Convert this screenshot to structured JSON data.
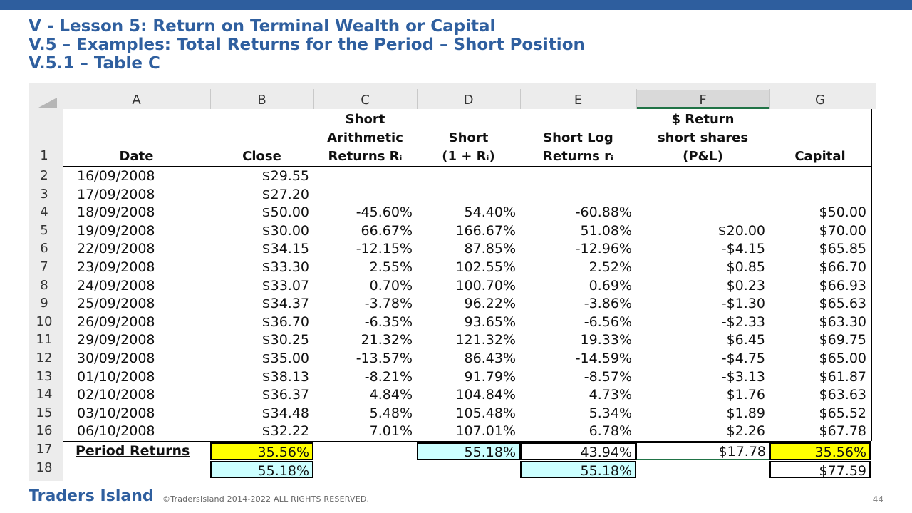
{
  "title": {
    "line1": "V -  Lesson 5: Return on Terminal Wealth or Capital",
    "line2": "V.5 – Examples: Total Returns for the Period – Short Position",
    "line3": "V.5.1 – Table C"
  },
  "columns": [
    "A",
    "B",
    "C",
    "D",
    "E",
    "F",
    "G"
  ],
  "header": {
    "date": "Date",
    "close": "Close",
    "short_arith": [
      "Short",
      "Arithmetic",
      "Returns Rᵢ"
    ],
    "short_one_plus": [
      "Short",
      "(1 + Rᵢ)"
    ],
    "short_log": [
      "Short Log",
      "Returns rᵢ"
    ],
    "dollar_return": [
      "$ Return",
      "short shares",
      "(P&L)"
    ],
    "capital": "Capital"
  },
  "row_numbers": [
    "1",
    "2",
    "3",
    "4",
    "5",
    "6",
    "7",
    "8",
    "9",
    "10",
    "11",
    "12",
    "13",
    "14",
    "15",
    "16",
    "17",
    "18"
  ],
  "rows": [
    {
      "date": "16/09/2008",
      "close": "$29.55",
      "arith": "",
      "one_plus": "",
      "log": "",
      "pnl": "",
      "capital": ""
    },
    {
      "date": "17/09/2008",
      "close": "$27.20",
      "arith": "",
      "one_plus": "",
      "log": "",
      "pnl": "",
      "capital": ""
    },
    {
      "date": "18/09/2008",
      "close": "$50.00",
      "arith": "-45.60%",
      "one_plus": "54.40%",
      "log": "-60.88%",
      "pnl": "",
      "capital": "$50.00"
    },
    {
      "date": "19/09/2008",
      "close": "$30.00",
      "arith": "66.67%",
      "one_plus": "166.67%",
      "log": "51.08%",
      "pnl": "$20.00",
      "capital": "$70.00"
    },
    {
      "date": "22/09/2008",
      "close": "$34.15",
      "arith": "-12.15%",
      "one_plus": "87.85%",
      "log": "-12.96%",
      "pnl": "-$4.15",
      "capital": "$65.85"
    },
    {
      "date": "23/09/2008",
      "close": "$33.30",
      "arith": "2.55%",
      "one_plus": "102.55%",
      "log": "2.52%",
      "pnl": "$0.85",
      "capital": "$66.70"
    },
    {
      "date": "24/09/2008",
      "close": "$33.07",
      "arith": "0.70%",
      "one_plus": "100.70%",
      "log": "0.69%",
      "pnl": "$0.23",
      "capital": "$66.93"
    },
    {
      "date": "25/09/2008",
      "close": "$34.37",
      "arith": "-3.78%",
      "one_plus": "96.22%",
      "log": "-3.86%",
      "pnl": "-$1.30",
      "capital": "$65.63"
    },
    {
      "date": "26/09/2008",
      "close": "$36.70",
      "arith": "-6.35%",
      "one_plus": "93.65%",
      "log": "-6.56%",
      "pnl": "-$2.33",
      "capital": "$63.30"
    },
    {
      "date": "29/09/2008",
      "close": "$30.25",
      "arith": "21.32%",
      "one_plus": "121.32%",
      "log": "19.33%",
      "pnl": "$6.45",
      "capital": "$69.75"
    },
    {
      "date": "30/09/2008",
      "close": "$35.00",
      "arith": "-13.57%",
      "one_plus": "86.43%",
      "log": "-14.59%",
      "pnl": "-$4.75",
      "capital": "$65.00"
    },
    {
      "date": "01/10/2008",
      "close": "$38.13",
      "arith": "-8.21%",
      "one_plus": "91.79%",
      "log": "-8.57%",
      "pnl": "-$3.13",
      "capital": "$61.87"
    },
    {
      "date": "02/10/2008",
      "close": "$36.37",
      "arith": "4.84%",
      "one_plus": "104.84%",
      "log": "4.73%",
      "pnl": "$1.76",
      "capital": "$63.63"
    },
    {
      "date": "03/10/2008",
      "close": "$34.48",
      "arith": "5.48%",
      "one_plus": "105.48%",
      "log": "5.34%",
      "pnl": "$1.89",
      "capital": "$65.52"
    },
    {
      "date": "06/10/2008",
      "close": "$32.22",
      "arith": "7.01%",
      "one_plus": "107.01%",
      "log": "6.78%",
      "pnl": "$2.26",
      "capital": "$67.78"
    }
  ],
  "summary": {
    "label": "Period Returns",
    "close": "35.56%",
    "one_plus": "55.18%",
    "log": "43.94%",
    "pnl": "$17.78",
    "capital": "35.56%"
  },
  "summary2": {
    "close": "55.18%",
    "log": "55.18%",
    "capital": "$77.59"
  },
  "colors": {
    "title": "#2f5f9f",
    "topbar": "#2e5e9e",
    "highlight_yellow": "#ffff00",
    "highlight_cyan": "#ccffff"
  },
  "footer": {
    "brand": "Traders Island",
    "copyright": "©TradersIsland 2014-2022 ALL RIGHTS RESERVED.",
    "page": "44"
  }
}
